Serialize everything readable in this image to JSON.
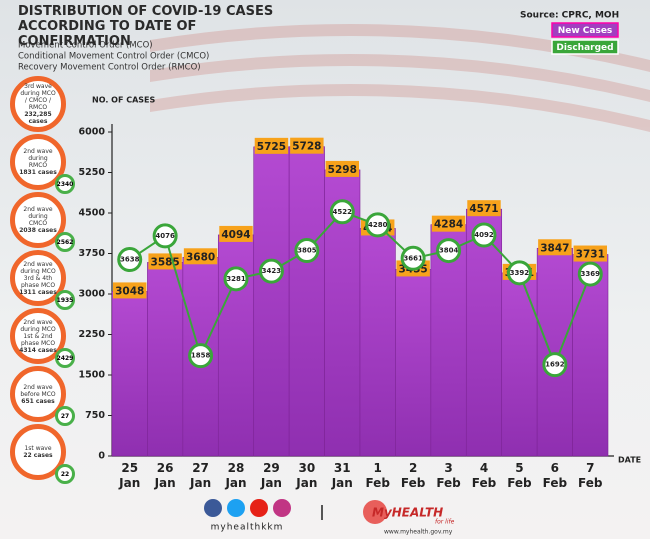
{
  "chart_data": {
    "type": "bar",
    "title": "DISTRIBUTION OF COVID-19 CASES ACCORDING TO DATE OF CONFIRMATION",
    "subtitle": [
      "Movement Control Order (MCO)",
      "Conditional Movement Control Order (CMCO)",
      "Recovery Movement Control Order (RMCO)"
    ],
    "source": "Source: CPRC, MOH",
    "y_label": "NO. OF CASES",
    "x_label": "DATE",
    "categories": [
      "25 Jan",
      "26 Jan",
      "27 Jan",
      "28 Jan",
      "29 Jan",
      "30 Jan",
      "31 Jan",
      "1 Feb",
      "2 Feb",
      "3 Feb",
      "4 Feb",
      "5 Feb",
      "6 Feb",
      "7 Feb"
    ],
    "series": [
      {
        "name": "New Cases",
        "color": "#a13fc0",
        "type": "bar",
        "values": [
          3048,
          3585,
          3680,
          4094,
          5725,
          5728,
          5298,
          4214,
          3455,
          4284,
          4571,
          3391,
          3847,
          3731
        ]
      },
      {
        "name": "Discharged",
        "color": "#3aa63a",
        "type": "line",
        "values": [
          3638,
          4076,
          1858,
          3281,
          3423,
          3805,
          4522,
          4280,
          3661,
          3804,
          4092,
          3392,
          1692,
          3369
        ]
      }
    ],
    "ylim": [
      0,
      6000
    ],
    "yticks": [
      0,
      750,
      1500,
      2250,
      3000,
      3750,
      4500,
      5250,
      6000
    ]
  },
  "waves": [
    {
      "label": "3rd wave during MCO / CMCO / RMCO",
      "cases": "232,285 cases"
    },
    {
      "label": "2nd wave during RMCO",
      "cases": "1831 cases",
      "badge": "2340"
    },
    {
      "label": "2nd wave during CMCO",
      "cases": "2038 cases",
      "badge": "2562"
    },
    {
      "label": "2nd wave during MCO 3rd & 4th phase MCO",
      "cases": "1311 cases",
      "badge": "1935"
    },
    {
      "label": "2nd wave during MCO 1st & 2nd phase MCO",
      "cases": "4314 cases",
      "badge": "2429"
    },
    {
      "label": "2nd wave before MCO",
      "cases": "651 cases",
      "badge": "27"
    },
    {
      "label": "1st wave",
      "cases": "22 cases",
      "badge": "22"
    }
  ],
  "footer": {
    "handle": "myhealthkkm",
    "brand": "MyHEALTH",
    "tagline": "for life",
    "url": "www.myhealth.gov.my"
  }
}
